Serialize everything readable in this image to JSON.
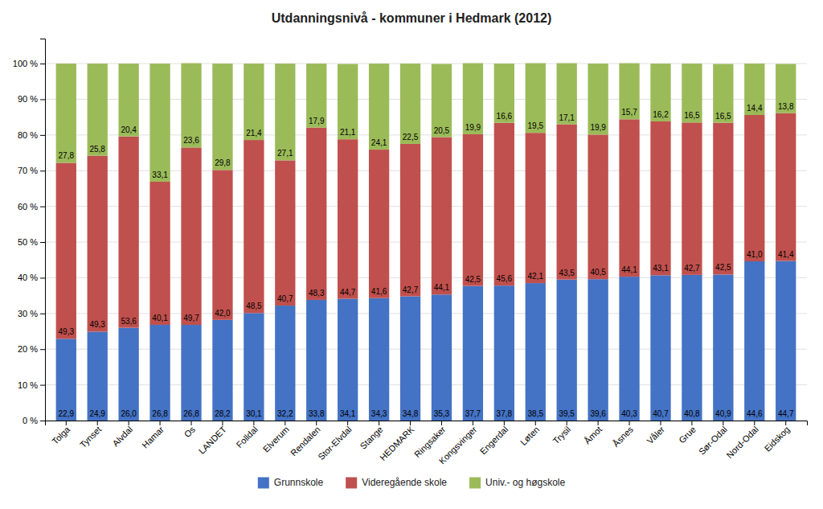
{
  "chart_data": {
    "type": "bar",
    "stacked": true,
    "title": "Utdanningsnivå - kommuner i Hedmark (2012)",
    "categories": [
      "Tolga",
      "Tynset",
      "Alvdal",
      "Hamar",
      "Os",
      "LANDET",
      "Folldal",
      "Elverum",
      "Rendalen",
      "Stor-Elvdal",
      "Stange",
      "HEDMARK",
      "Ringsaker",
      "Kongsvinger",
      "Engerdal",
      "Løten",
      "Trysil",
      "Åmot",
      "Åsnes",
      "Våler",
      "Grue",
      "Sør-Odal",
      "Nord-Odal",
      "Eidskog"
    ],
    "series": [
      {
        "name": "Grunnskole",
        "color": "#4472C4",
        "values": [
          22.9,
          24.9,
          26.0,
          26.8,
          26.8,
          28.2,
          30.1,
          32.2,
          33.8,
          34.1,
          34.3,
          34.8,
          35.3,
          37.7,
          37.8,
          38.5,
          39.5,
          39.6,
          40.3,
          40.7,
          40.8,
          40.9,
          44.6,
          44.7
        ],
        "value_labels": [
          "22,9",
          "24,9",
          "26,0",
          "26,8",
          "26,8",
          "28,2",
          "30,1",
          "32,2",
          "33,8",
          "34,1",
          "34,3",
          "34,8",
          "35,3",
          "37,7",
          "37,8",
          "38,5",
          "39,5",
          "39,6",
          "40,3",
          "40,7",
          "40,8",
          "40,9",
          "44,6",
          "44,7"
        ]
      },
      {
        "name": "Videregående skole",
        "color": "#C0504D",
        "values": [
          49.3,
          49.3,
          53.6,
          40.1,
          49.7,
          42.0,
          48.5,
          40.7,
          48.3,
          44.7,
          41.6,
          42.7,
          44.1,
          42.5,
          45.6,
          42.1,
          43.5,
          40.5,
          44.1,
          43.1,
          42.7,
          42.5,
          41.0,
          41.4
        ],
        "value_labels": [
          "49,3",
          "49,3",
          "53,6",
          "40,1",
          "49,7",
          "42,0",
          "48,5",
          "40,7",
          "48,3",
          "44,7",
          "41,6",
          "42,7",
          "44,1",
          "42,5",
          "45,6",
          "42,1",
          "43,5",
          "40,5",
          "44,1",
          "43,1",
          "42,7",
          "42,5",
          "41,0",
          "41,4"
        ]
      },
      {
        "name": "Univ.- og høgskole",
        "color": "#9BBB59",
        "values": [
          27.8,
          25.8,
          20.4,
          33.1,
          23.6,
          29.8,
          21.4,
          27.1,
          17.9,
          21.1,
          24.1,
          22.5,
          20.5,
          19.9,
          16.6,
          19.5,
          17.1,
          19.9,
          15.7,
          16.2,
          16.5,
          16.5,
          14.4,
          13.8
        ],
        "value_labels": [
          "27,8",
          "25,8",
          "20,4",
          "33,1",
          "23,6",
          "29,8",
          "21,4",
          "27,1",
          "17,9",
          "21,1",
          "24,1",
          "22,5",
          "20,5",
          "19,9",
          "16,6",
          "19,5",
          "17,1",
          "19,9",
          "15,7",
          "16,2",
          "16,5",
          "16,5",
          "14,4",
          "13,8"
        ]
      }
    ],
    "data_labels": true,
    "ylim": [
      0,
      107
    ],
    "yticks": [
      {
        "value": 0,
        "label": "0 %"
      },
      {
        "value": 10,
        "label": "10 %"
      },
      {
        "value": 20,
        "label": "20 %"
      },
      {
        "value": 30,
        "label": "30 %"
      },
      {
        "value": 40,
        "label": "40 %"
      },
      {
        "value": 50,
        "label": "50 %"
      },
      {
        "value": 60,
        "label": "60 %"
      },
      {
        "value": 70,
        "label": "70 %"
      },
      {
        "value": 80,
        "label": "80 %"
      },
      {
        "value": 90,
        "label": "90 %"
      },
      {
        "value": 100,
        "label": "100 %"
      }
    ],
    "grid": true,
    "legend": "bottom"
  }
}
